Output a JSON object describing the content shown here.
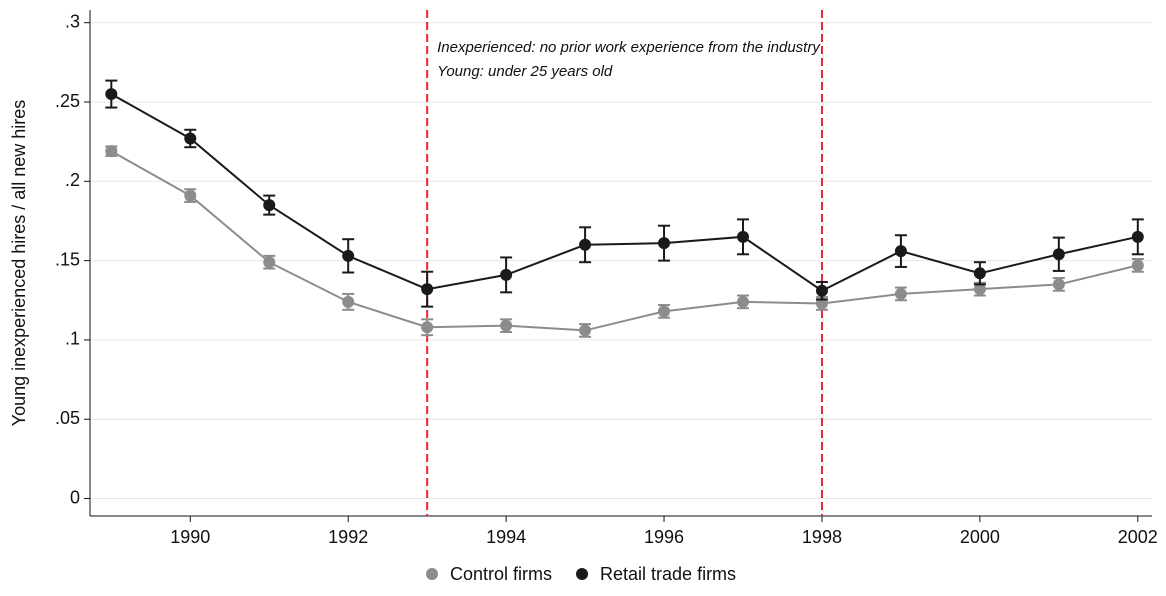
{
  "chart_data": {
    "type": "line",
    "y_label": "Young inexperienced hires / all new hires",
    "annotations": [
      "Inexperienced: no prior work experience from the industry",
      "Young: under 25 years old"
    ],
    "x": [
      1989,
      1990,
      1991,
      1992,
      1993,
      1994,
      1995,
      1996,
      1997,
      1998,
      1999,
      2000,
      2001,
      2002
    ],
    "series": [
      {
        "name": "Control firms",
        "color": "#8c8c8c",
        "values": [
          0.219,
          0.191,
          0.149,
          0.124,
          0.108,
          0.109,
          0.106,
          0.118,
          0.124,
          0.123,
          0.129,
          0.132,
          0.135,
          0.147
        ],
        "errors": [
          0.003,
          0.004,
          0.004,
          0.005,
          0.005,
          0.004,
          0.004,
          0.004,
          0.004,
          0.004,
          0.004,
          0.004,
          0.004,
          0.004
        ]
      },
      {
        "name": "Retail trade firms",
        "color": "#1a1a1a",
        "values": [
          0.255,
          0.227,
          0.185,
          0.153,
          0.132,
          0.141,
          0.16,
          0.161,
          0.165,
          0.131,
          0.156,
          0.142,
          0.154,
          0.165
        ],
        "errors": [
          0.0085,
          0.0055,
          0.006,
          0.0105,
          0.011,
          0.011,
          0.011,
          0.011,
          0.011,
          0.0055,
          0.01,
          0.007,
          0.0105,
          0.011
        ]
      }
    ],
    "vlines": [
      1993,
      1998
    ],
    "vline_color": "#e8262b",
    "xlim": [
      1988.73,
      2002.18
    ],
    "xticks": [
      1990,
      1992,
      1994,
      1996,
      1998,
      2000,
      2002
    ],
    "ylim": [
      -0.011,
      0.308
    ],
    "yticks": [
      0,
      {
        "value": 0.05,
        "label": ".05"
      },
      {
        "value": 0.1,
        "label": ".1"
      },
      {
        "value": 0.15,
        "label": ".15"
      },
      {
        "value": 0.2,
        "label": ".2"
      },
      {
        "value": 0.25,
        "label": ".25"
      },
      {
        "value": 0.3,
        "label": ".3"
      }
    ],
    "grid": true,
    "legend": "bottom"
  }
}
